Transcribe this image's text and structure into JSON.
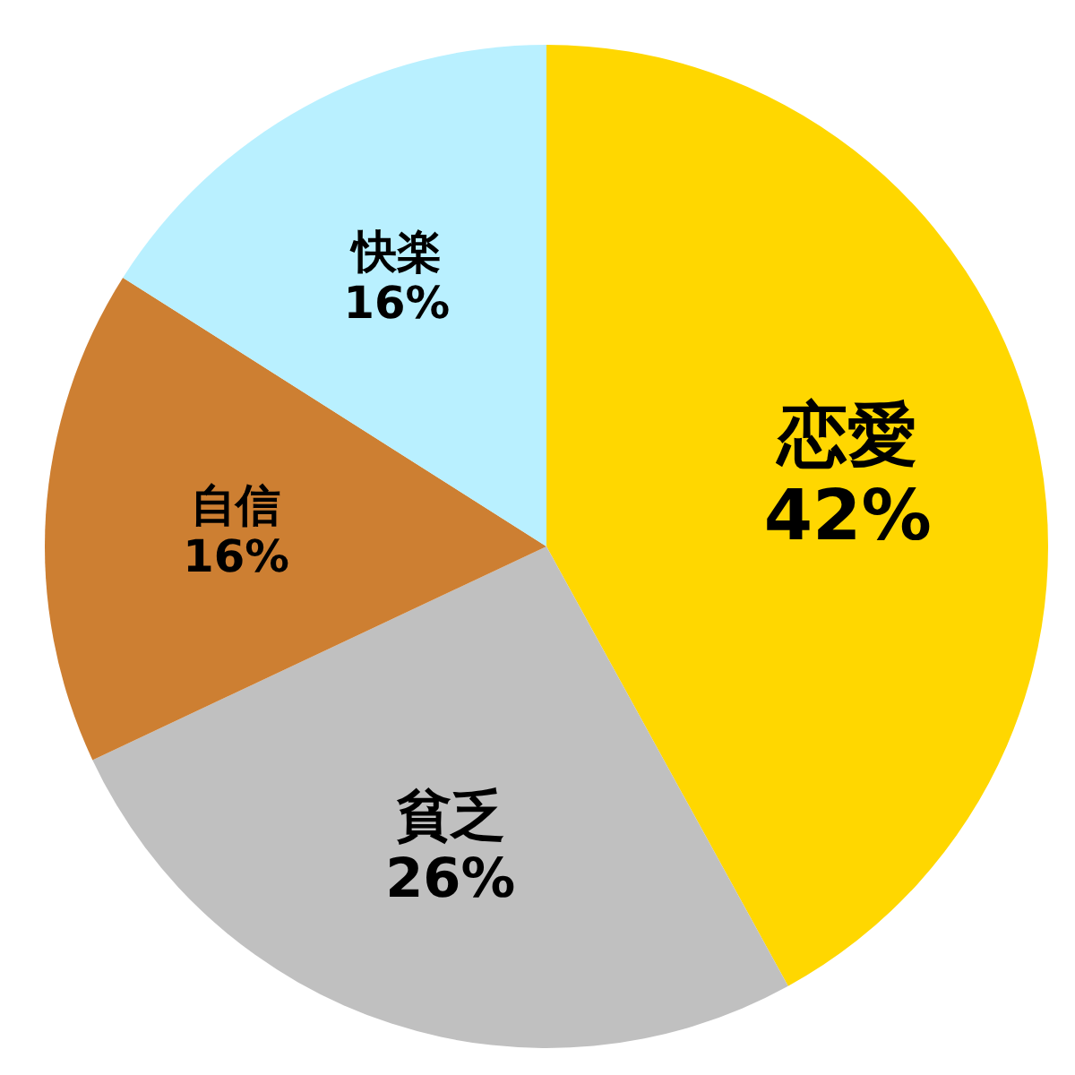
{
  "chart_data": {
    "type": "pie",
    "categories": [
      "恋愛",
      "貧乏",
      "自信",
      "快楽"
    ],
    "values": [
      42,
      26,
      16,
      16
    ],
    "value_labels": [
      "42%",
      "26%",
      "16%",
      "16%"
    ],
    "colors": [
      "#ffd700",
      "#c0c0c0",
      "#cd7f32",
      "#b9f0ff"
    ]
  }
}
